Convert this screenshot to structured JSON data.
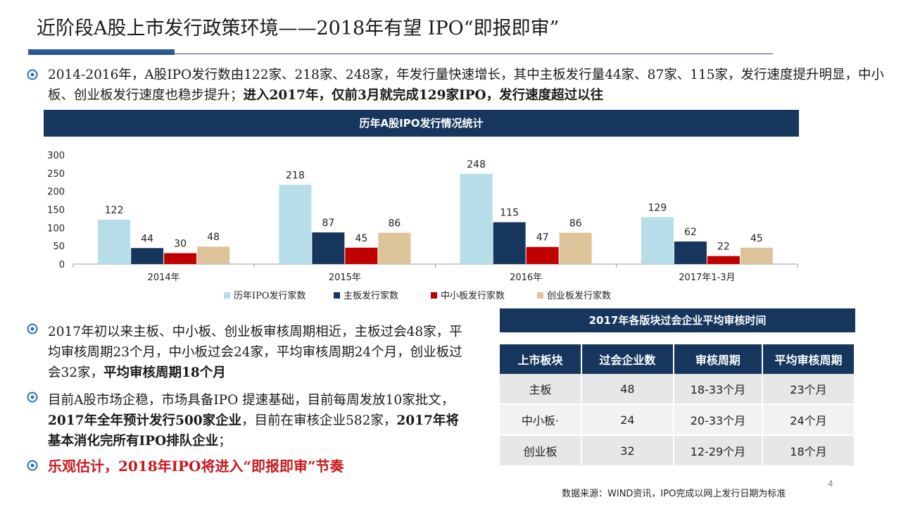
{
  "slide": {
    "title": "近阶段A股上市发行政策环境——2018年有望 IPO“即报即审”",
    "page_number": "4",
    "source": "数据来源：WIND资讯，IPO完成以网上发行日期为标准"
  },
  "bullets": {
    "p1_normal": "2014-2016年，A股IPO发行数由122家、218家、248家，年发行量快速增长，其中主板发行量44家、87家、115家，发行速度提升明显，中小板、创业板发行速度也稳步提升；",
    "p1_bold": "进入2017年，仅前3月就完成129家IPO，发行速度超过以往",
    "p2_normal": "2017年初以来主板、中小板、创业板审核周期相近，主板过会48家，平均审核周期23个月，中小板过会24家，平均审核周期24个月，创业板过会32家，",
    "p2_bold": "平均审核周期18个月",
    "p3_a": "目前A股市场企稳，市场具备IPO 提速基础，目前每周发放10家批文，",
    "p3_bold1": "2017年全年预计发行500家企业",
    "p3_b": "，目前在审核企业582家，",
    "p3_bold2": "2017年将基本消化完所有IPO排队企业",
    "p3_c": "；",
    "p4": "乐观估计，2018年IPO将进入“即报即审”节奏"
  },
  "chart_title": "历年A股IPO发行情况统计",
  "chart_data": {
    "type": "bar",
    "categories": [
      "2014年",
      "2015年",
      "2016年",
      "2017年1-3月"
    ],
    "series": [
      {
        "name": "历年IPO发行家数",
        "values": [
          122,
          218,
          248,
          129
        ],
        "color": "#b7dde8"
      },
      {
        "name": "主板发行家数",
        "values": [
          44,
          87,
          115,
          62
        ],
        "color": "#17365d"
      },
      {
        "name": "中小板发行家数",
        "values": [
          30,
          45,
          47,
          22
        ],
        "color": "#c00000"
      },
      {
        "name": "创业板发行家数",
        "values": [
          48,
          86,
          86,
          45
        ],
        "color": "#ddc39a"
      }
    ],
    "yticks": [
      0,
      50,
      100,
      150,
      200,
      250,
      300
    ],
    "ylim": [
      0,
      300
    ],
    "legend": "bottom",
    "grid": false
  },
  "table": {
    "title": "2017年各版块过会企业平均审核时间",
    "headers": [
      "上市板块",
      "过会企业数",
      "审核周期",
      "平均审核周期"
    ],
    "rows": [
      [
        "主板",
        "48",
        "18-33个月",
        "23个月"
      ],
      [
        "中小板·",
        "24",
        "20-33个月",
        "24个月"
      ],
      [
        "创业板",
        "32",
        "12-29个月",
        "18个月"
      ]
    ]
  }
}
